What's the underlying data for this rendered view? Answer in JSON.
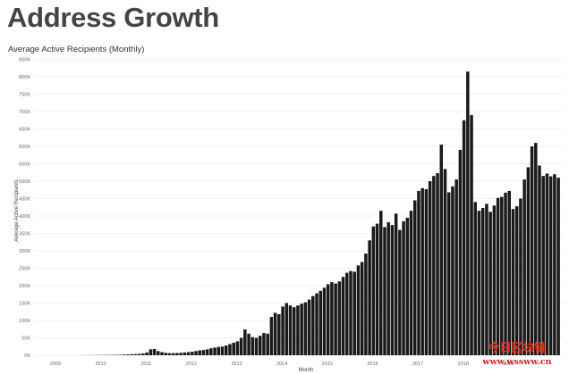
{
  "header": {
    "title": "Address Growth"
  },
  "chart_data": {
    "type": "bar",
    "title": "Address Growth",
    "subtitle": "Average Active Recipients (Monthly)",
    "xlabel": "Month",
    "ylabel": "Average Active Recipients",
    "ylim": [
      0,
      900000
    ],
    "yticks": [
      {
        "value": 0,
        "label": "0K"
      },
      {
        "value": 50000,
        "label": "50K"
      },
      {
        "value": 100000,
        "label": "100K"
      },
      {
        "value": 150000,
        "label": "150K"
      },
      {
        "value": 200000,
        "label": "200K"
      },
      {
        "value": 250000,
        "label": "250K"
      },
      {
        "value": 300000,
        "label": "300K"
      },
      {
        "value": 350000,
        "label": "350K"
      },
      {
        "value": 400000,
        "label": "400K"
      },
      {
        "value": 450000,
        "label": "450K"
      },
      {
        "value": 500000,
        "label": "500K"
      },
      {
        "value": 550000,
        "label": "550K"
      },
      {
        "value": 600000,
        "label": "600K"
      },
      {
        "value": 650000,
        "label": "650K"
      },
      {
        "value": 700000,
        "label": "700K"
      },
      {
        "value": 750000,
        "label": "750K"
      },
      {
        "value": 800000,
        "label": "800K"
      },
      {
        "value": 850000,
        "label": "850K"
      }
    ],
    "xticks": [
      "2009",
      "2010",
      "2011",
      "2012",
      "2013",
      "2014",
      "2015",
      "2016",
      "2017",
      "2018",
      "2019"
    ],
    "x_start_year": 2009,
    "bar_color": "#1a1a1a",
    "grid": true,
    "legend": "none",
    "values": [
      0,
      0,
      0,
      0,
      0,
      0,
      0,
      0,
      0,
      0,
      0,
      0,
      200,
      300,
      400,
      500,
      600,
      700,
      800,
      900,
      1000,
      1200,
      1500,
      2000,
      2500,
      3000,
      3500,
      4000,
      5000,
      8000,
      17000,
      18000,
      12000,
      9000,
      7000,
      6000,
      6000,
      6500,
      7000,
      8000,
      9000,
      10000,
      12000,
      14000,
      15000,
      17000,
      20000,
      22000,
      24000,
      25000,
      28000,
      32000,
      36000,
      40000,
      50000,
      74000,
      62000,
      52000,
      50000,
      56000,
      64000,
      62000,
      110000,
      122000,
      118000,
      140000,
      150000,
      143000,
      138000,
      143000,
      148000,
      152000,
      160000,
      170000,
      178000,
      185000,
      194000,
      204000,
      210000,
      206000,
      212000,
      225000,
      237000,
      242000,
      240000,
      258000,
      268000,
      292000,
      330000,
      370000,
      378000,
      415000,
      368000,
      382000,
      374000,
      407000,
      360000,
      385000,
      395000,
      415000,
      445000,
      472000,
      480000,
      477000,
      500000,
      515000,
      523000,
      605000,
      535000,
      468000,
      485000,
      505000,
      590000,
      675000,
      815000,
      690000,
      440000,
      415000,
      423000,
      435000,
      412000,
      430000,
      452000,
      455000,
      467000,
      472000,
      420000,
      428000,
      450000,
      505000,
      540000,
      600000,
      610000,
      545000,
      515000,
      522000,
      514000,
      520000,
      510000
    ]
  },
  "watermark": {
    "brand": "今日区块链",
    "url": "www.wssww.cn"
  }
}
